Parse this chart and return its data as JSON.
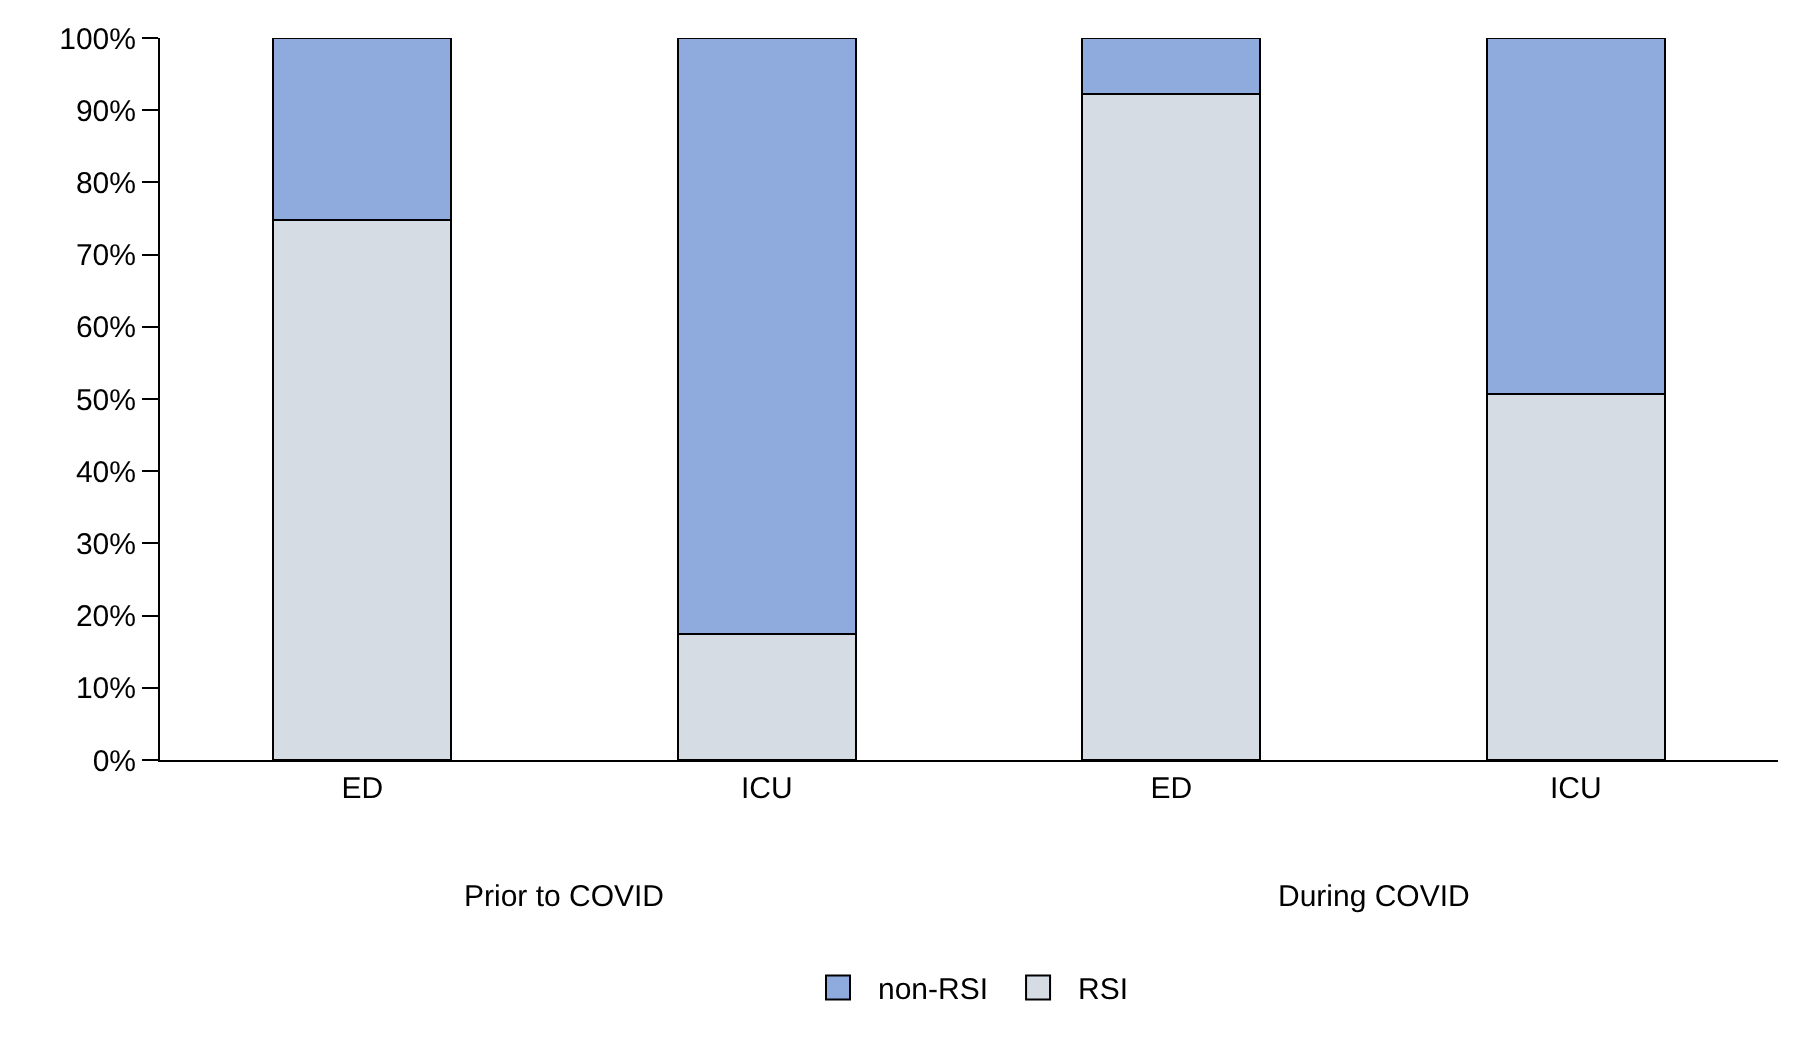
{
  "chart_data": {
    "type": "bar",
    "stacked": true,
    "categories": [
      "ED",
      "ICU",
      "ED",
      "ICU"
    ],
    "series": [
      {
        "name": "RSI",
        "color": "#d6dce4",
        "values": [
          74.8,
          17.4,
          92.2,
          50.7
        ]
      },
      {
        "name": "non-RSI",
        "color": "#8faadc",
        "values": [
          25.2,
          82.6,
          7.8,
          49.3
        ]
      }
    ],
    "annotations": [
      "Prior to COVID",
      "During COVID"
    ],
    "ylim": [
      0,
      100
    ],
    "yticks": [
      {
        "value": 0,
        "label": "0%"
      },
      {
        "value": 10,
        "label": "10%"
      },
      {
        "value": 20,
        "label": "20%"
      },
      {
        "value": 30,
        "label": "30%"
      },
      {
        "value": 40,
        "label": "40%"
      },
      {
        "value": 50,
        "label": "50%"
      },
      {
        "value": 60,
        "label": "60%"
      },
      {
        "value": 70,
        "label": "70%"
      },
      {
        "value": 80,
        "label": "80%"
      },
      {
        "value": 90,
        "label": "90%"
      },
      {
        "value": 100,
        "label": "100%"
      }
    ],
    "grid": false,
    "legend": "bottom"
  }
}
